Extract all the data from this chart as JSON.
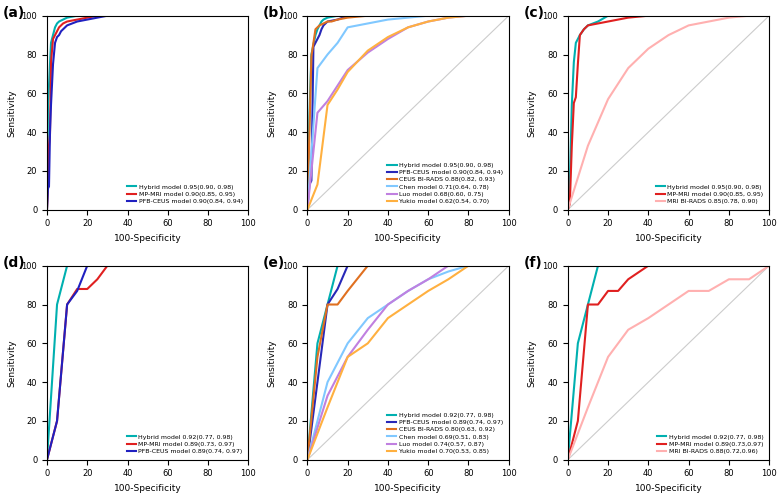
{
  "panels": [
    {
      "label": "(a)",
      "legend": [
        {
          "text": "Hybrid model 0.95(0.90, 0.98)",
          "color": "#00B0B0",
          "lw": 1.5
        },
        {
          "text": "MP-MRI model 0.90(0.85, 0.95)",
          "color": "#E02020",
          "lw": 1.5
        },
        {
          "text": "PFB-CEUS model 0.90(0.84, 0.94)",
          "color": "#2020C0",
          "lw": 1.5
        }
      ],
      "curves": [
        {
          "color": "#00B0B0",
          "lw": 1.5,
          "x": [
            0,
            0.5,
            1,
            1.5,
            2,
            2.5,
            3,
            3.5,
            4,
            5,
            6,
            8,
            10,
            15,
            20,
            30,
            40,
            50,
            60,
            70,
            80,
            90,
            100
          ],
          "y": [
            0,
            54,
            64,
            75,
            86,
            88,
            90,
            92,
            94,
            96,
            97,
            98,
            99,
            100,
            100,
            100,
            100,
            100,
            100,
            100,
            100,
            100,
            100
          ]
        },
        {
          "color": "#E02020",
          "lw": 1.5,
          "x": [
            0,
            0.5,
            1,
            1.5,
            2,
            3,
            4,
            5,
            6,
            7,
            8,
            10,
            15,
            20,
            25,
            30,
            40,
            50,
            60,
            70,
            80,
            90,
            100
          ],
          "y": [
            0,
            12,
            33,
            39,
            76,
            88,
            90,
            92,
            94,
            95,
            96,
            97,
            98,
            99,
            100,
            100,
            100,
            100,
            100,
            100,
            100,
            100,
            100
          ]
        },
        {
          "color": "#2020C0",
          "lw": 1.5,
          "x": [
            0,
            0.5,
            1,
            1.5,
            2,
            3,
            4,
            5,
            6,
            7,
            8,
            10,
            15,
            20,
            25,
            30,
            40,
            50,
            60,
            70,
            80,
            90,
            100
          ],
          "y": [
            0,
            11,
            12,
            40,
            54,
            75,
            86,
            89,
            90,
            92,
            93,
            95,
            97,
            98,
            99,
            100,
            100,
            100,
            100,
            100,
            100,
            100,
            100
          ]
        }
      ],
      "diagonal": false
    },
    {
      "label": "(b)",
      "legend": [
        {
          "text": "Hybrid model 0.95(0.90, 0.98)",
          "color": "#00B0B0",
          "lw": 1.5
        },
        {
          "text": "PFB-CEUS model 0.90(0.84, 0.94)",
          "color": "#2828B8",
          "lw": 1.5
        },
        {
          "text": "CEUS BI-RADS 0.88(0.82, 0.93)",
          "color": "#E07020",
          "lw": 1.5
        },
        {
          "text": "Chen model 0.71(0.64, 0.78)",
          "color": "#80C8FF",
          "lw": 1.5
        },
        {
          "text": "Luo model 0.68(0.60, 0.75)",
          "color": "#C080E0",
          "lw": 1.5
        },
        {
          "text": "Yukio model 0.62(0.54, 0.70)",
          "color": "#FFB040",
          "lw": 1.5
        }
      ],
      "curves": [
        {
          "color": "#00B0B0",
          "lw": 1.5,
          "x": [
            0,
            1,
            2,
            3,
            4,
            5,
            6,
            7,
            8,
            10,
            15,
            20,
            30,
            40,
            50,
            60,
            70,
            80,
            90,
            100
          ],
          "y": [
            0,
            48,
            80,
            85,
            90,
            93,
            95,
            97,
            98,
            99,
            100,
            100,
            100,
            100,
            100,
            100,
            100,
            100,
            100,
            100
          ]
        },
        {
          "color": "#2828B8",
          "lw": 1.5,
          "x": [
            0,
            1,
            2,
            3,
            4,
            5,
            6,
            7,
            8,
            10,
            15,
            20,
            30,
            40,
            50,
            60,
            70,
            80,
            90,
            100
          ],
          "y": [
            0,
            13,
            15,
            84,
            86,
            88,
            90,
            93,
            95,
            97,
            98,
            100,
            100,
            100,
            100,
            100,
            100,
            100,
            100,
            100
          ]
        },
        {
          "color": "#E07020",
          "lw": 1.5,
          "x": [
            0,
            2,
            4,
            6,
            8,
            10,
            12,
            15,
            20,
            30,
            40,
            50,
            60,
            70,
            80,
            90,
            100
          ],
          "y": [
            0,
            79,
            93,
            95,
            96,
            97,
            97,
            98,
            99,
            100,
            100,
            100,
            100,
            100,
            100,
            100,
            100
          ]
        },
        {
          "color": "#80C8FF",
          "lw": 1.5,
          "x": [
            0,
            5,
            10,
            15,
            20,
            30,
            40,
            50,
            60,
            70,
            80,
            90,
            100
          ],
          "y": [
            0,
            73,
            80,
            86,
            94,
            96,
            98,
            99,
            100,
            100,
            100,
            100,
            100
          ]
        },
        {
          "color": "#C080E0",
          "lw": 1.5,
          "x": [
            0,
            5,
            10,
            15,
            20,
            30,
            40,
            50,
            60,
            70,
            80,
            90,
            100
          ],
          "y": [
            0,
            50,
            56,
            64,
            72,
            81,
            88,
            94,
            97,
            99,
            100,
            100,
            100
          ]
        },
        {
          "color": "#FFB040",
          "lw": 1.5,
          "x": [
            0,
            5,
            10,
            15,
            20,
            30,
            40,
            50,
            60,
            70,
            80,
            90,
            100
          ],
          "y": [
            0,
            13,
            54,
            62,
            71,
            82,
            89,
            94,
            97,
            99,
            100,
            100,
            100
          ]
        }
      ],
      "diagonal": true
    },
    {
      "label": "(c)",
      "legend": [
        {
          "text": "Hybrid model 0.95(0.90, 0.98)",
          "color": "#00B0B0",
          "lw": 1.5
        },
        {
          "text": "MP-MRI model 0.90(0.85, 0.95)",
          "color": "#E02020",
          "lw": 1.5
        },
        {
          "text": "MRI BI-RADS 0.85(0.78, 0.90)",
          "color": "#FFB0B0",
          "lw": 1.5
        }
      ],
      "curves": [
        {
          "color": "#00B0B0",
          "lw": 1.5,
          "x": [
            0,
            1,
            2,
            3,
            4,
            5,
            6,
            8,
            10,
            15,
            20,
            30,
            40,
            50,
            60,
            70,
            80,
            90,
            100
          ],
          "y": [
            0,
            13,
            54,
            76,
            86,
            88,
            90,
            93,
            95,
            97,
            100,
            100,
            100,
            100,
            100,
            100,
            100,
            100,
            100
          ]
        },
        {
          "color": "#E02020",
          "lw": 1.5,
          "x": [
            0,
            1,
            2,
            3,
            4,
            5,
            6,
            8,
            10,
            15,
            20,
            25,
            30,
            40,
            50,
            60,
            70,
            80,
            90,
            100
          ],
          "y": [
            0,
            3,
            33,
            55,
            58,
            75,
            90,
            93,
            95,
            96,
            97,
            98,
            99,
            100,
            100,
            100,
            100,
            100,
            100,
            100
          ]
        },
        {
          "color": "#FFB0B0",
          "lw": 1.5,
          "x": [
            0,
            10,
            20,
            30,
            40,
            50,
            60,
            70,
            80,
            90,
            100
          ],
          "y": [
            0,
            33,
            57,
            73,
            83,
            90,
            95,
            97,
            99,
            100,
            100
          ]
        }
      ],
      "diagonal": true
    },
    {
      "label": "(d)",
      "legend": [
        {
          "text": "Hybrid model 0.92(0.77, 0.98)",
          "color": "#00B0B0",
          "lw": 1.5
        },
        {
          "text": "MP-MRI model 0.89(0.73, 0.97)",
          "color": "#E02020",
          "lw": 1.5
        },
        {
          "text": "PFB-CEUS model 0.89(0.74, 0.97)",
          "color": "#2020C0",
          "lw": 1.5
        }
      ],
      "curves": [
        {
          "color": "#00B0B0",
          "lw": 1.5,
          "x": [
            0,
            5,
            10,
            15,
            20,
            25,
            30,
            40,
            50,
            60,
            70,
            80,
            90,
            100
          ],
          "y": [
            0,
            80,
            100,
            100,
            100,
            100,
            100,
            100,
            100,
            100,
            100,
            100,
            100,
            100
          ]
        },
        {
          "color": "#E02020",
          "lw": 1.5,
          "x": [
            0,
            5,
            10,
            15,
            20,
            25,
            30,
            40,
            50,
            60,
            70,
            80,
            90,
            100
          ],
          "y": [
            0,
            20,
            80,
            88,
            88,
            93,
            100,
            100,
            100,
            100,
            100,
            100,
            100,
            100
          ]
        },
        {
          "color": "#2020C0",
          "lw": 1.5,
          "x": [
            0,
            5,
            10,
            15,
            20,
            25,
            30,
            40,
            50,
            60,
            70,
            80,
            90,
            100
          ],
          "y": [
            0,
            20,
            80,
            87,
            100,
            100,
            100,
            100,
            100,
            100,
            100,
            100,
            100,
            100
          ]
        }
      ],
      "diagonal": false
    },
    {
      "label": "(e)",
      "legend": [
        {
          "text": "Hybrid model 0.92(0.77, 0.98)",
          "color": "#00B0B0",
          "lw": 1.5
        },
        {
          "text": "PFB-CEUS model 0.89(0.74, 0.97)",
          "color": "#2828B8",
          "lw": 1.5
        },
        {
          "text": "CEUS BI-RADS 0.80(0.63, 0.92)",
          "color": "#E07020",
          "lw": 1.5
        },
        {
          "text": "Chen model 0.69(0.51, 0.83)",
          "color": "#80C8FF",
          "lw": 1.5
        },
        {
          "text": "Luo model 0.74(0.57, 0.87)",
          "color": "#C080E0",
          "lw": 1.5
        },
        {
          "text": "Yukio model 0.70(0.53, 0.85)",
          "color": "#FFB040",
          "lw": 1.5
        }
      ],
      "curves": [
        {
          "color": "#00B0B0",
          "lw": 1.5,
          "x": [
            0,
            5,
            10,
            15,
            20,
            25,
            30,
            40,
            50,
            60,
            70,
            80,
            90,
            100
          ],
          "y": [
            0,
            60,
            80,
            100,
            100,
            100,
            100,
            100,
            100,
            100,
            100,
            100,
            100,
            100
          ]
        },
        {
          "color": "#2828B8",
          "lw": 1.5,
          "x": [
            0,
            5,
            10,
            15,
            20,
            25,
            30,
            40,
            50,
            60,
            70,
            80,
            90,
            100
          ],
          "y": [
            0,
            40,
            80,
            88,
            100,
            100,
            100,
            100,
            100,
            100,
            100,
            100,
            100,
            100
          ]
        },
        {
          "color": "#E07020",
          "lw": 1.5,
          "x": [
            0,
            5,
            10,
            15,
            20,
            30,
            40,
            50,
            60,
            70,
            80,
            90,
            100
          ],
          "y": [
            0,
            53,
            80,
            80,
            87,
            100,
            100,
            100,
            100,
            100,
            100,
            100,
            100
          ]
        },
        {
          "color": "#80C8FF",
          "lw": 1.5,
          "x": [
            0,
            10,
            20,
            30,
            40,
            50,
            60,
            70,
            80,
            90,
            100
          ],
          "y": [
            0,
            40,
            60,
            73,
            80,
            87,
            93,
            97,
            100,
            100,
            100
          ]
        },
        {
          "color": "#C080E0",
          "lw": 1.5,
          "x": [
            0,
            10,
            20,
            30,
            40,
            50,
            60,
            70,
            80,
            90,
            100
          ],
          "y": [
            0,
            33,
            53,
            67,
            80,
            87,
            93,
            100,
            100,
            100,
            100
          ]
        },
        {
          "color": "#FFB040",
          "lw": 1.5,
          "x": [
            0,
            10,
            20,
            30,
            40,
            50,
            60,
            70,
            80,
            90,
            100
          ],
          "y": [
            0,
            27,
            53,
            60,
            73,
            80,
            87,
            93,
            100,
            100,
            100
          ]
        }
      ],
      "diagonal": true
    },
    {
      "label": "(f)",
      "legend": [
        {
          "text": "Hybrid model 0.92(0.77, 0.98)",
          "color": "#00B0B0",
          "lw": 1.5
        },
        {
          "text": "MP-MRI model 0.89(0.73,0.97)",
          "color": "#E02020",
          "lw": 1.5
        },
        {
          "text": "MRI BI-RADS 0.88(0.72,0.96)",
          "color": "#FFB0B0",
          "lw": 1.5
        }
      ],
      "curves": [
        {
          "color": "#00B0B0",
          "lw": 1.5,
          "x": [
            0,
            5,
            10,
            15,
            20,
            25,
            30,
            40,
            50,
            60,
            70,
            80,
            90,
            100
          ],
          "y": [
            0,
            60,
            80,
            100,
            100,
            100,
            100,
            100,
            100,
            100,
            100,
            100,
            100,
            100
          ]
        },
        {
          "color": "#E02020",
          "lw": 1.5,
          "x": [
            0,
            5,
            10,
            15,
            20,
            25,
            30,
            40,
            50,
            60,
            70,
            80,
            90,
            100
          ],
          "y": [
            0,
            20,
            80,
            80,
            87,
            87,
            93,
            100,
            100,
            100,
            100,
            100,
            100,
            100
          ]
        },
        {
          "color": "#FFB0B0",
          "lw": 1.5,
          "x": [
            0,
            10,
            20,
            30,
            40,
            50,
            60,
            70,
            80,
            90,
            100
          ],
          "y": [
            0,
            27,
            53,
            67,
            73,
            80,
            87,
            87,
            93,
            93,
            100
          ]
        }
      ],
      "diagonal": true
    }
  ]
}
